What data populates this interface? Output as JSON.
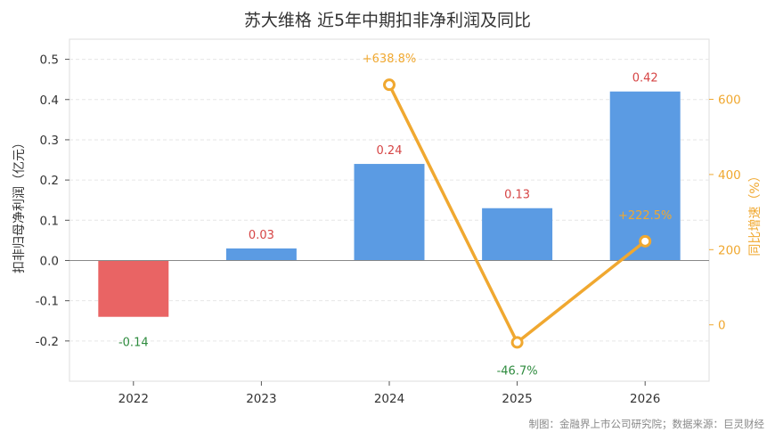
{
  "chart_data": {
    "type": "bar",
    "title": "苏大维格 近5年中期扣非净利润及同比",
    "categories": [
      "2022",
      "2023",
      "2024",
      "2025",
      "2026"
    ],
    "series": [
      {
        "values": [
          -0.14,
          0.03,
          0.24,
          0.13,
          0.42
        ],
        "value_labels": [
          "-0.14",
          "0.03",
          "0.24",
          "0.13",
          "0.42"
        ],
        "color_positive": "#5b9be3",
        "color_negative": "#e96464"
      },
      {
        "type": "line",
        "values": [
          null,
          null,
          638.8,
          -46.7,
          222.5
        ],
        "value_labels": [
          "",
          "",
          "+638.8%",
          "-46.7%",
          "+222.5%"
        ],
        "color": "#f0a830"
      }
    ],
    "ylabel": "扣非归母净利润（亿元）",
    "y2label": "同比增速（%）",
    "ylim": [
      -0.3,
      0.55
    ],
    "y2lim": [
      -150,
      760
    ],
    "yticks": [
      -0.2,
      -0.1,
      0.0,
      0.1,
      0.2,
      0.3,
      0.4,
      0.5
    ],
    "ytick_labels": [
      "-0.2",
      "-0.1",
      "0.0",
      "0.1",
      "0.2",
      "0.3",
      "0.4",
      "0.5"
    ],
    "y2ticks": [
      0,
      200,
      400,
      600
    ],
    "y2tick_labels": [
      "0",
      "200",
      "400",
      "600"
    ],
    "grid": true,
    "label_colors": {
      "positive": "#d64545",
      "negative": "#2e8b3e"
    }
  },
  "footer": "制图：金融界上市公司研究院；数据来源：巨灵财经"
}
